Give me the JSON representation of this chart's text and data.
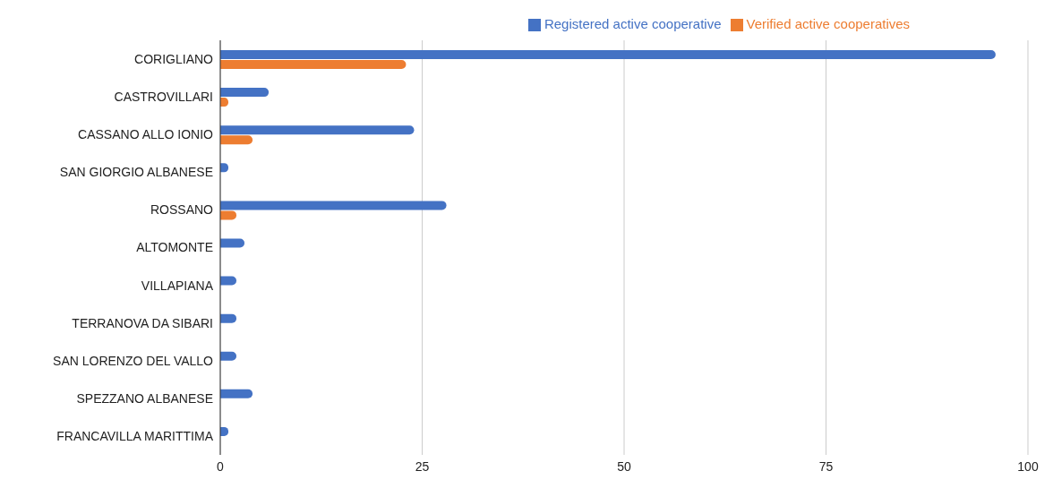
{
  "chart_data": {
    "type": "bar",
    "orientation": "horizontal",
    "categories": [
      "CORIGLIANO",
      "CASTROVILLARI",
      "CASSANO ALLO IONIO",
      "SAN GIORGIO ALBANESE",
      "ROSSANO",
      "ALTOMONTE",
      "VILLAPIANA",
      "TERRANOVA DA SIBARI",
      "SAN LORENZO DEL VALLO",
      "SPEZZANO ALBANESE",
      "FRANCAVILLA MARITTIMA"
    ],
    "series": [
      {
        "name": "Registered active cooperative",
        "color": "#4472c4",
        "values": [
          96,
          6,
          24,
          1,
          28,
          3,
          2,
          2,
          2,
          4,
          1
        ]
      },
      {
        "name": "Verified active cooperatives",
        "color": "#ed7d31",
        "values": [
          23,
          1,
          4,
          0,
          2,
          0,
          0,
          0,
          0,
          0,
          0
        ]
      }
    ],
    "xlim": [
      0,
      100
    ],
    "xticks": [
      0,
      25,
      50,
      75,
      100
    ],
    "grid": "x",
    "legend": "top"
  }
}
